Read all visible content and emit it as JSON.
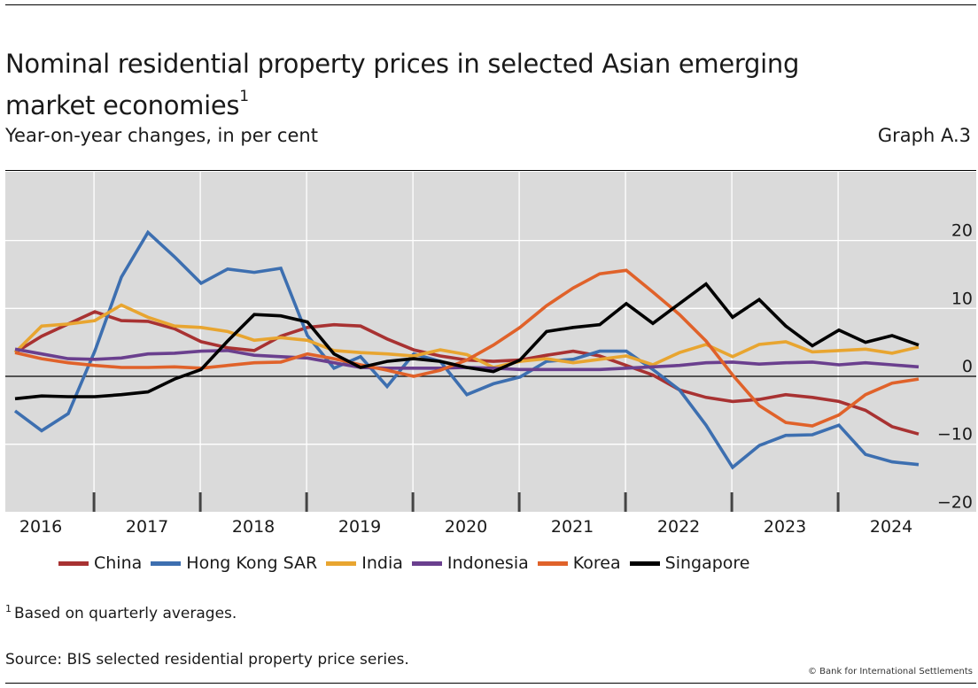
{
  "header": {
    "title": "Nominal residential property prices in selected Asian emerging market economies",
    "title_footnote_marker": "1",
    "subtitle": "Year-on-year changes, in per cent",
    "graph_id": "Graph A.3"
  },
  "footer": {
    "footnote_marker": "1",
    "footnote": "Based on quarterly averages.",
    "source": "Source: BIS selected residential property price series.",
    "copyright": "© Bank for International Settlements"
  },
  "chart_data": {
    "type": "line",
    "title": "Nominal residential property prices in selected Asian emerging market economies",
    "subtitle": "Year-on-year changes, in per cent",
    "xlabel": "",
    "ylabel": "",
    "x_frequency": "quarterly",
    "x": [
      "2016Q1",
      "2016Q2",
      "2016Q3",
      "2016Q4",
      "2017Q1",
      "2017Q2",
      "2017Q3",
      "2017Q4",
      "2018Q1",
      "2018Q2",
      "2018Q3",
      "2018Q4",
      "2019Q1",
      "2019Q2",
      "2019Q3",
      "2019Q4",
      "2020Q1",
      "2020Q2",
      "2020Q3",
      "2020Q4",
      "2021Q1",
      "2021Q2",
      "2021Q3",
      "2021Q4",
      "2022Q1",
      "2022Q2",
      "2022Q3",
      "2022Q4",
      "2023Q1",
      "2023Q2",
      "2023Q3",
      "2023Q4",
      "2024Q1",
      "2024Q2",
      "2024Q3"
    ],
    "x_tick_labels": [
      "2016",
      "2017",
      "2018",
      "2019",
      "2020",
      "2021",
      "2022",
      "2023",
      "2024"
    ],
    "y_ticks": [
      20,
      10,
      0,
      -10,
      -20
    ],
    "y_tick_labels": [
      "20",
      "10",
      "0",
      "−10",
      "−20"
    ],
    "ylim": [
      -20,
      30
    ],
    "y_axis_side": "right",
    "grid": true,
    "zero_line": true,
    "legend_position": "bottom",
    "series": [
      {
        "name": "China",
        "color": "#A83232",
        "values": [
          3.5,
          5.9,
          7.7,
          9.5,
          8.2,
          8.1,
          7.0,
          5.1,
          4.2,
          3.8,
          5.9,
          7.2,
          7.6,
          7.4,
          5.5,
          3.9,
          3.0,
          2.4,
          2.2,
          2.4,
          3.1,
          3.7,
          3.0,
          1.6,
          0.2,
          -2.0,
          -3.1,
          -3.7,
          -3.4,
          -2.7,
          -3.1,
          -3.7,
          -5.0,
          -7.4,
          -8.5
        ]
      },
      {
        "name": "Hong Kong SAR",
        "color": "#3D6FB0",
        "values": [
          -5.1,
          -8.0,
          -5.5,
          3.7,
          14.6,
          21.2,
          17.6,
          13.7,
          15.8,
          15.3,
          15.9,
          6.0,
          1.2,
          2.9,
          -1.5,
          3.3,
          2.2,
          -2.7,
          -1.1,
          -0.1,
          2.2,
          2.5,
          3.7,
          3.7,
          1.0,
          -2.0,
          -7.2,
          -13.4,
          -10.2,
          -8.7,
          -8.6,
          -7.2,
          -11.5,
          -12.6,
          -13.0
        ]
      },
      {
        "name": "India",
        "color": "#E8A530",
        "values": [
          3.5,
          7.4,
          7.7,
          8.2,
          10.5,
          8.7,
          7.4,
          7.2,
          6.6,
          5.3,
          5.7,
          5.3,
          3.8,
          3.5,
          3.3,
          3.0,
          3.9,
          3.2,
          1.3,
          2.2,
          2.6,
          2.0,
          2.5,
          3.0,
          1.7,
          3.5,
          4.7,
          2.9,
          4.7,
          5.1,
          3.6,
          3.8,
          4.0,
          3.4,
          4.3
        ]
      },
      {
        "name": "Indonesia",
        "color": "#6A3F8E",
        "values": [
          4.0,
          3.3,
          2.6,
          2.5,
          2.7,
          3.3,
          3.4,
          3.7,
          3.8,
          3.1,
          2.9,
          2.7,
          2.0,
          1.3,
          1.2,
          1.2,
          1.2,
          1.3,
          1.2,
          1.0,
          1.0,
          1.0,
          1.0,
          1.2,
          1.4,
          1.6,
          2.0,
          2.1,
          1.8,
          2.0,
          2.1,
          1.7,
          2.0,
          1.7,
          1.4
        ]
      },
      {
        "name": "Korea",
        "color": "#E0622A",
        "values": [
          3.5,
          2.6,
          2.0,
          1.6,
          1.3,
          1.3,
          1.4,
          1.2,
          1.6,
          2.0,
          2.1,
          3.3,
          2.6,
          1.7,
          0.9,
          0.0,
          0.9,
          2.4,
          4.6,
          7.2,
          10.4,
          13.0,
          15.1,
          15.6,
          12.4,
          9.1,
          5.2,
          0.2,
          -4.3,
          -6.8,
          -7.3,
          -5.7,
          -2.7,
          -1.0,
          -0.4
        ]
      },
      {
        "name": "Singapore",
        "color": "#000000",
        "values": [
          -3.3,
          -2.9,
          -3.0,
          -3.0,
          -2.7,
          -2.3,
          -0.4,
          1.0,
          5.2,
          9.1,
          8.9,
          8.0,
          3.3,
          1.3,
          2.2,
          2.6,
          2.2,
          1.3,
          0.7,
          2.4,
          6.6,
          7.2,
          7.6,
          10.7,
          7.8,
          10.7,
          13.6,
          8.7,
          11.3,
          7.4,
          4.5,
          6.8,
          5.0,
          6.0,
          4.6
        ]
      }
    ]
  }
}
